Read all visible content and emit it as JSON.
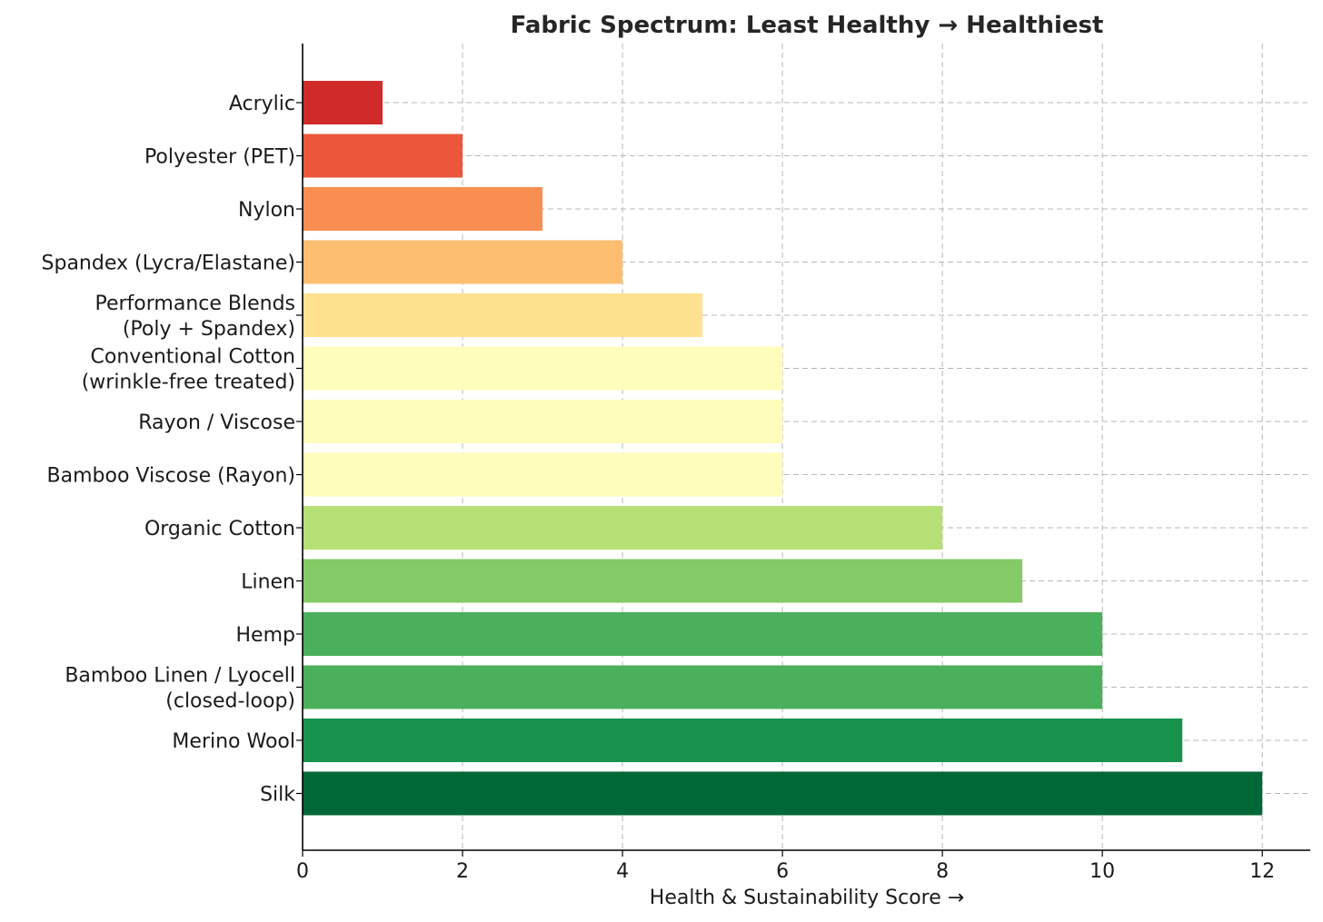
{
  "chart_data": {
    "type": "bar",
    "orientation": "horizontal",
    "title": "Fabric Spectrum: Least Healthy → Healthiest",
    "xlabel": "Health & Sustainability Score →",
    "ylabel": "",
    "xlim": [
      0,
      12.6
    ],
    "xticks": [
      0,
      2,
      4,
      6,
      8,
      10,
      12
    ],
    "grid": true,
    "categories": [
      "Acrylic",
      "Polyester (PET)",
      "Nylon",
      "Spandex (Lycra/Elastane)",
      "Performance Blends\n(Poly + Spandex)",
      "Conventional Cotton\n(wrinkle-free treated)",
      "Rayon / Viscose",
      "Bamboo Viscose (Rayon)",
      "Organic Cotton",
      "Linen",
      "Hemp",
      "Bamboo Linen / Lyocell\n(closed-loop)",
      "Merino Wool",
      "Silk"
    ],
    "values": [
      1,
      2,
      3,
      4,
      5,
      6,
      6,
      6,
      8,
      9,
      10,
      10,
      11,
      12
    ],
    "colors": [
      "#cf2b2a",
      "#ea573b",
      "#f98e52",
      "#fdbe70",
      "#fee28f",
      "#fefdbb",
      "#fefdbb",
      "#fefdbb",
      "#b6e075",
      "#84ca66",
      "#4bb05c",
      "#4bb05c",
      "#17934d",
      "#006837"
    ]
  }
}
